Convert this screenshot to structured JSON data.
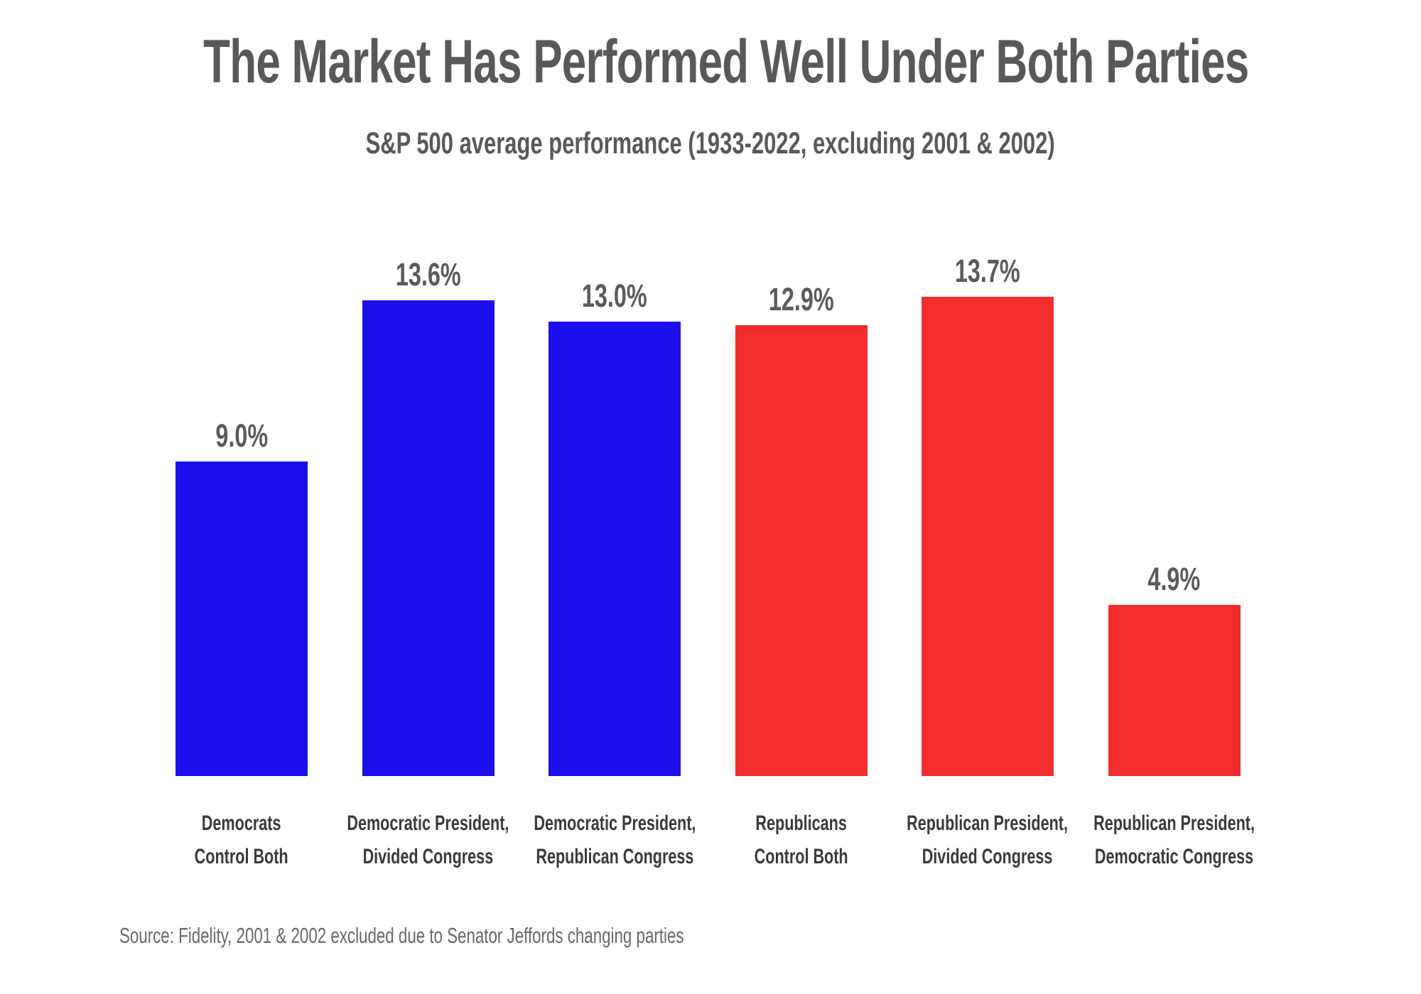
{
  "page": {
    "title": "The Market Has Performed Well Under Both Parties",
    "subtitle": "S&P 500 average performance (1933-2022, excluding 2001 & 2002)",
    "source": "Source: Fidelity, 2001 & 2002 excluded due to Senator Jeffords changing parties"
  },
  "colors": {
    "background": "#FFFFFF",
    "democrat_blue": "#1C0FEE",
    "republican_red": "#F22D2D",
    "title_gray": "#5B575B",
    "value_label_gray": "#5E595D",
    "category_label_dark": "#3B393E",
    "source_gray": "#6B676C"
  },
  "chart_data": {
    "type": "bar",
    "title": "The Market Has Performed Well Under Both Parties",
    "subtitle": "S&P 500 average performance (1933-2022, excluding 2001 & 2002)",
    "categories": [
      [
        "Democrats",
        "Control Both"
      ],
      [
        "Democratic President,",
        "Divided Congress"
      ],
      [
        "Democratic President,",
        "Republican Congress"
      ],
      [
        "Republicans",
        "Control Both"
      ],
      [
        "Republican President,",
        "Divided Congress"
      ],
      [
        "Republican President,",
        "Democratic Congress"
      ]
    ],
    "values": [
      9.0,
      13.6,
      13.0,
      12.9,
      13.7,
      4.9
    ],
    "value_labels": [
      "9.0%",
      "13.6%",
      "13.0%",
      "12.9%",
      "13.7%",
      "4.9%"
    ],
    "bar_colors": [
      "#1C0FEE",
      "#1C0FEE",
      "#1C0FEE",
      "#F22D2D",
      "#F22D2D",
      "#F22D2D"
    ],
    "series_legend": {
      "democratic": "#1C0FEE",
      "republican": "#F22D2D"
    },
    "unit": "%",
    "ylim": [
      0,
      15.2
    ],
    "grid": false,
    "legend_position": "none",
    "axis": "none (data labels above bars, category labels below)",
    "source": "Source: Fidelity, 2001 & 2002 excluded due to Senator Jeffords changing parties"
  }
}
